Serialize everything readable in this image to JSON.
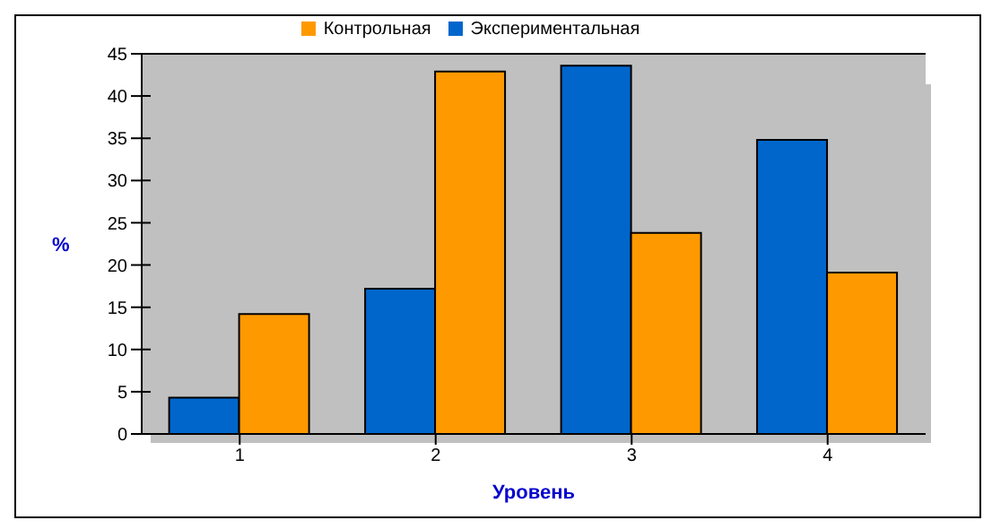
{
  "chart_data": {
    "type": "bar",
    "xlabel": "Уровень",
    "ylabel": "%",
    "categories": [
      "1",
      "2",
      "3",
      "4"
    ],
    "series": [
      {
        "name": "Экспериментальная",
        "color": "#0066cc",
        "values": [
          4.3,
          17.2,
          43.6,
          34.8
        ]
      },
      {
        "name": "Контрольная",
        "color": "#ff9900",
        "values": [
          14.2,
          42.9,
          23.8,
          19.1
        ]
      }
    ],
    "ylim": [
      0,
      45
    ],
    "yticks": [
      0,
      5,
      10,
      15,
      20,
      25,
      30,
      35,
      40,
      45
    ],
    "grid": "y",
    "legend": "top"
  }
}
